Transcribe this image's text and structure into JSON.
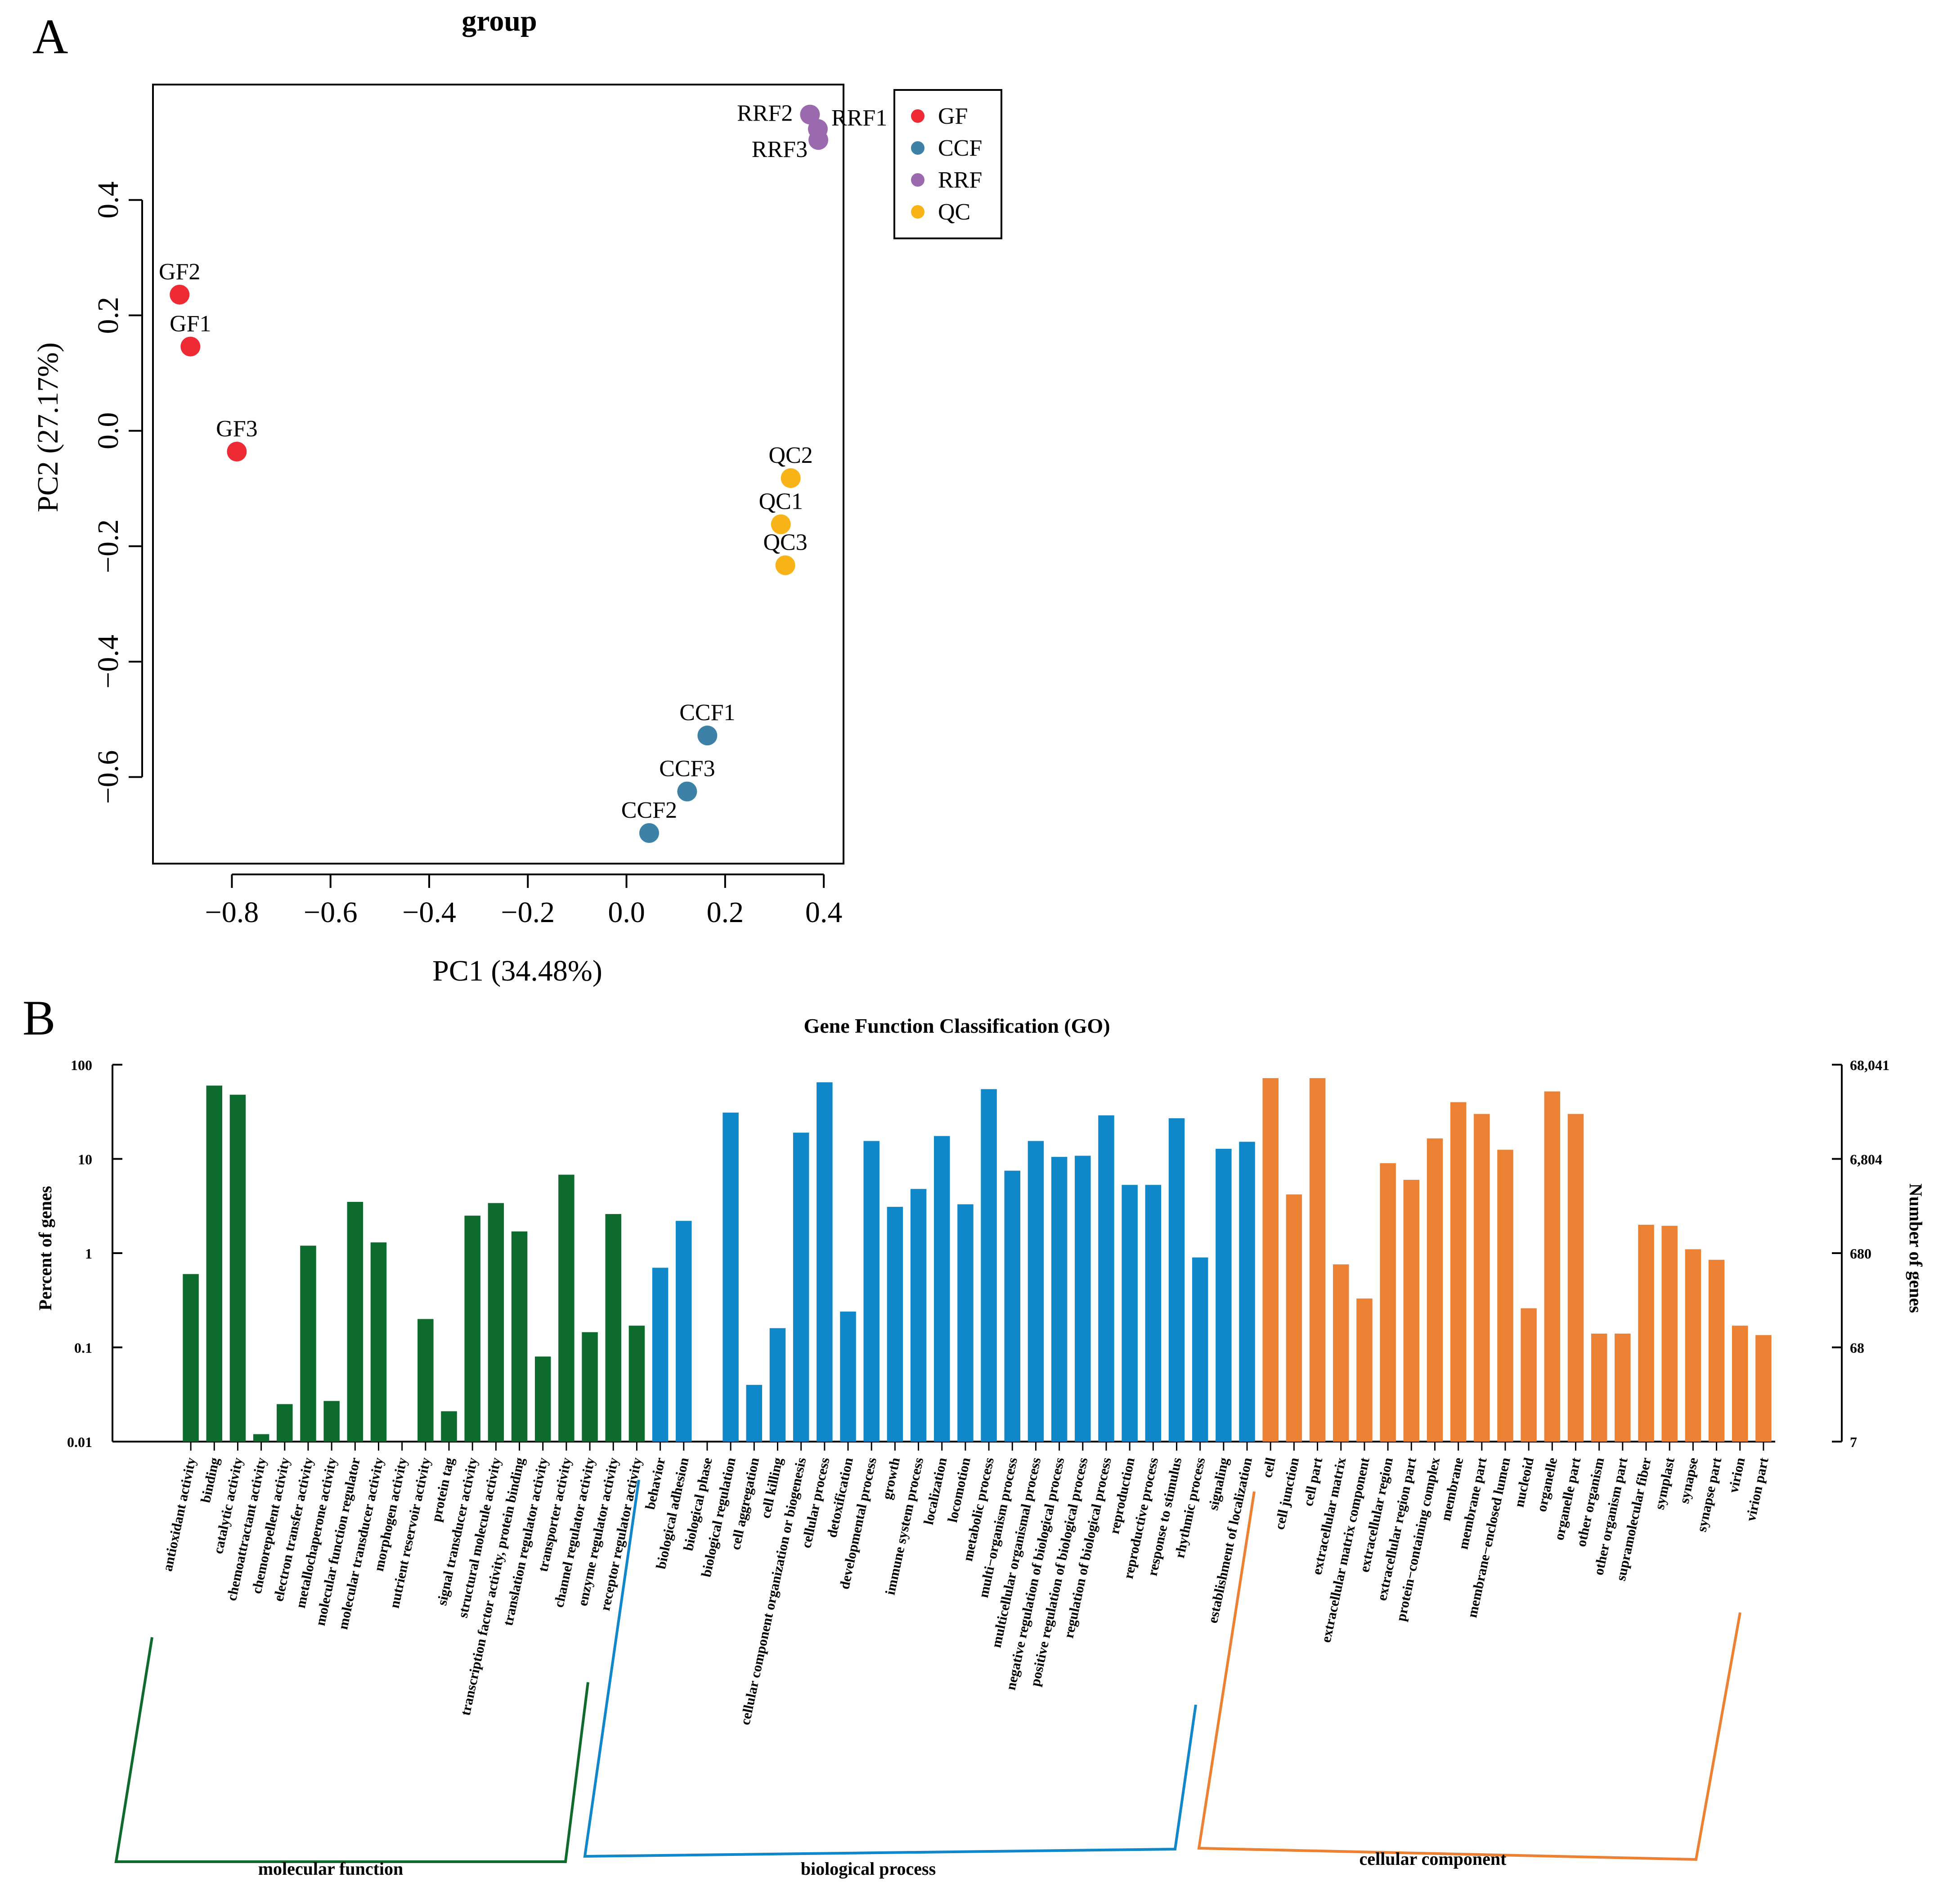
{
  "panel_a": {
    "letter": "A"
  },
  "panel_b": {
    "letter": "B"
  },
  "colors": {
    "GF": "#ee2a34",
    "CCF": "#3d82a6",
    "RRF": "#9b69ad",
    "QC": "#f8b417",
    "molecular_function": "#0e6b2e",
    "biological_process": "#0f87c9",
    "cellular_component": "#ec8033"
  },
  "chart_data": [
    {
      "type": "scatter",
      "title": "group",
      "xlabel": "PC1 (34.48%)",
      "ylabel": "PC2 (27.17%)",
      "xlim": [
        -0.96,
        0.44
      ],
      "ylim": [
        -0.75,
        0.6
      ],
      "xticks": [
        -0.8,
        -0.6,
        -0.4,
        -0.2,
        0.0,
        0.2,
        0.4
      ],
      "xtick_labels": [
        "−0.8",
        "−0.6",
        "−0.4",
        "−0.2",
        "0.0",
        "0.2",
        "0.4"
      ],
      "yticks": [
        -0.6,
        -0.4,
        -0.2,
        0.0,
        0.2,
        0.4
      ],
      "ytick_labels": [
        "−0.6",
        "−0.4",
        "−0.2",
        "0.0",
        "0.2",
        "0.4"
      ],
      "legend": [
        "GF",
        "CCF",
        "RRF",
        "QC"
      ],
      "legend_position": "top-right",
      "points": [
        {
          "label": "GF2",
          "group": "GF",
          "x": -0.906,
          "y": 0.236,
          "anchor": "above"
        },
        {
          "label": "GF1",
          "group": "GF",
          "x": -0.884,
          "y": 0.146,
          "anchor": "above"
        },
        {
          "label": "GF3",
          "group": "GF",
          "x": -0.79,
          "y": -0.036,
          "anchor": "above"
        },
        {
          "label": "RRF2",
          "group": "RRF",
          "x": 0.372,
          "y": 0.548,
          "anchor": "left"
        },
        {
          "label": "RRF1",
          "group": "RRF",
          "x": 0.388,
          "y": 0.523,
          "anchor": "right"
        },
        {
          "label": "RRF3",
          "group": "RRF",
          "x": 0.389,
          "y": 0.504,
          "anchor": "left-below"
        },
        {
          "label": "QC2",
          "group": "QC",
          "x": 0.333,
          "y": -0.082,
          "anchor": "above"
        },
        {
          "label": "QC1",
          "group": "QC",
          "x": 0.313,
          "y": -0.162,
          "anchor": "above"
        },
        {
          "label": "QC3",
          "group": "QC",
          "x": 0.322,
          "y": -0.233,
          "anchor": "above"
        },
        {
          "label": "CCF1",
          "group": "CCF",
          "x": 0.164,
          "y": -0.528,
          "anchor": "above"
        },
        {
          "label": "CCF3",
          "group": "CCF",
          "x": 0.123,
          "y": -0.625,
          "anchor": "above"
        },
        {
          "label": "CCF2",
          "group": "CCF",
          "x": 0.046,
          "y": -0.697,
          "anchor": "above"
        }
      ]
    },
    {
      "type": "bar",
      "title": "Gene Function Classification (GO)",
      "ylabel": "Percent of genes",
      "y2label": "Number of genes",
      "yscale": "log",
      "ylim": [
        0.01,
        100
      ],
      "yticks": [
        0.01,
        0.1,
        1,
        10,
        100
      ],
      "ytick_labels": [
        "0.01",
        "0.1",
        "1",
        "10",
        "100"
      ],
      "y2tick_labels": [
        "7",
        "68",
        "680",
        "6,804",
        "68,041"
      ],
      "categories": [
        "antioxidant activity",
        "binding",
        "catalytic activity",
        "chemoattractant activity",
        "chemorepellent activity",
        "electron transfer activity",
        "metallochaperone activity",
        "molecular function regulator",
        "molecular transducer activity",
        "morphogen activity",
        "nutrient reservoir activity",
        "protein tag",
        "signal transducer activity",
        "structural molecule activity",
        "transcription factor activity, protein binding",
        "translation regulator activity",
        "transporter activity",
        "channel regulator activity",
        "enzyme regulator activity",
        "receptor regulator activity",
        "behavior",
        "biological adhesion",
        "biological phase",
        "biological regulation",
        "cell aggregation",
        "cell killing",
        "cellular component organization or biogenesis",
        "cellular process",
        "detoxification",
        "developmental process",
        "growth",
        "immune system process",
        "localization",
        "locomotion",
        "metabolic process",
        "multi−organism process",
        "multicellular organismal process",
        "negative regulation of biological process",
        "positive regulation of biological process",
        "regulation of biological process",
        "reproduction",
        "reproductive process",
        "response to stimulus",
        "rhythmic process",
        "signaling",
        "establishment of localization",
        "cell",
        "cell junction",
        "cell part",
        "extracellular matrix",
        "extracellular matrix component",
        "extracellular region",
        "extracellular region part",
        "protein−containing complex",
        "membrane",
        "membrane part",
        "membrane−enclosed lumen",
        "nucleoid",
        "organelle",
        "organelle part",
        "other organism",
        "other organism part",
        "supramolecular fiber",
        "symplast",
        "synapse",
        "synapse part",
        "virion",
        "virion part"
      ],
      "values": [
        0.6,
        60,
        48,
        0.012,
        0.025,
        1.2,
        0.027,
        3.5,
        1.3,
        null,
        0.2,
        0.021,
        2.5,
        3.4,
        1.7,
        0.08,
        6.8,
        0.145,
        2.6,
        0.17,
        0.7,
        2.2,
        null,
        31,
        0.04,
        0.16,
        19,
        65,
        0.24,
        15.5,
        3.1,
        4.8,
        17.5,
        3.3,
        55,
        7.5,
        15.5,
        10.5,
        10.8,
        29,
        5.3,
        5.3,
        27,
        0.9,
        12.8,
        15.2,
        72,
        4.2,
        72,
        0.76,
        0.33,
        9,
        6,
        16.5,
        40,
        30,
        12.5,
        0.26,
        52,
        30,
        0.14,
        0.14,
        2.0,
        1.95,
        1.1,
        0.85,
        0.17,
        0.135
      ],
      "groups": [
        {
          "name": "molecular function",
          "start": 0,
          "end": 19
        },
        {
          "name": "biological process",
          "start": 20,
          "end": 45
        },
        {
          "name": "cellular component",
          "start": 46,
          "end": 67
        }
      ]
    }
  ]
}
